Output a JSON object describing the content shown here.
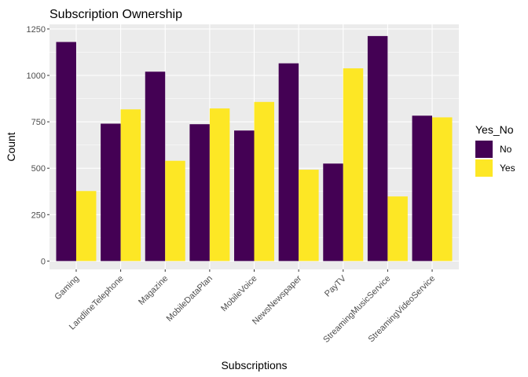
{
  "chart_data": {
    "type": "bar",
    "title": "Subscription Ownership",
    "xlabel": "Subscriptions",
    "ylabel": "Count",
    "categories": [
      "Gaming",
      "LandlineTelephone",
      "Magazine",
      "MobileDataPlan",
      "MobileVoice",
      "NewsNewspaper",
      "PayTV",
      "StreamingMusicService",
      "StreamingVideoService"
    ],
    "series": [
      {
        "name": "No",
        "color": "#440154",
        "values": [
          1180,
          740,
          1020,
          737,
          703,
          1065,
          525,
          1212,
          783
        ]
      },
      {
        "name": "Yes",
        "color": "#FDE725",
        "values": [
          377,
          817,
          540,
          822,
          857,
          492,
          1038,
          348,
          774
        ]
      }
    ],
    "ylim": [
      -45,
      1275
    ],
    "yticks": [
      0,
      250,
      500,
      750,
      1000,
      1250
    ],
    "ytick_labels": [
      "0",
      "250",
      "500",
      "750",
      "1000",
      "1250"
    ],
    "legend": {
      "title": "Yes_No",
      "position": "right"
    },
    "grid": true,
    "panel_background": "#EBEBEB",
    "grid_color": "#FFFFFF"
  }
}
